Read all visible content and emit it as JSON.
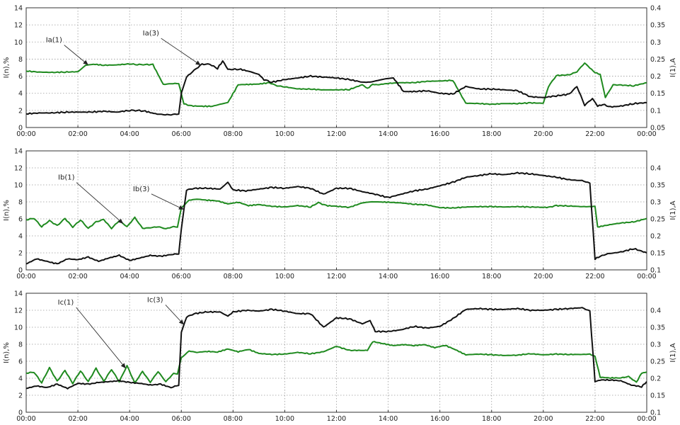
{
  "chart_data": [
    {
      "type": "line",
      "ylabel": "I(n),%",
      "ylabel_right": "I(1),A",
      "x_ticks": [
        "00:00",
        "02:00",
        "04:00",
        "06:00",
        "08:00",
        "10:00",
        "12:00",
        "14:00",
        "16:00",
        "18:00",
        "20:00",
        "22:00",
        "00:00"
      ],
      "ylim": [
        0,
        14
      ],
      "y_ticks": [
        "0",
        "2",
        "4",
        "6",
        "8",
        "10",
        "12",
        "14"
      ],
      "ylim_right": [
        0.05,
        0.4
      ],
      "y_ticks_right": [
        "0.05",
        "0.1",
        "0.15",
        "0.2",
        "0.25",
        "0.3",
        "0.35",
        "0.4"
      ],
      "grid": true,
      "series": [
        {
          "name": "Ia(1)",
          "axis": "right",
          "color": "#1f8a1f",
          "x": [
            0,
            0.5,
            1,
            1.5,
            2,
            2.3,
            2.6,
            3,
            3.5,
            4,
            4.3,
            4.6,
            4.9,
            5.3,
            5.6,
            5.9,
            6.1,
            6.4,
            6.8,
            7.2,
            7.5,
            7.8,
            8.2,
            8.6,
            9,
            9.4,
            9.7,
            10,
            10.5,
            11,
            11.5,
            12,
            12.5,
            13,
            13.2,
            13.4,
            13.6,
            14,
            14.5,
            15,
            15.5,
            16,
            16.5,
            17,
            17.5,
            18,
            18.5,
            19,
            19.5,
            20,
            20.2,
            20.5,
            21,
            21.3,
            21.6,
            21.8,
            22,
            22.2,
            22.4,
            22.7,
            23,
            23.5,
            24
          ],
          "y": [
            0.215,
            0.212,
            0.211,
            0.212,
            0.213,
            0.232,
            0.235,
            0.232,
            0.233,
            0.236,
            0.234,
            0.234,
            0.234,
            0.176,
            0.178,
            0.179,
            0.119,
            0.113,
            0.112,
            0.112,
            0.118,
            0.123,
            0.175,
            0.176,
            0.177,
            0.181,
            0.172,
            0.169,
            0.163,
            0.162,
            0.16,
            0.16,
            0.161,
            0.175,
            0.164,
            0.176,
            0.175,
            0.179,
            0.181,
            0.181,
            0.185,
            0.186,
            0.188,
            0.121,
            0.12,
            0.118,
            0.12,
            0.12,
            0.122,
            0.121,
            0.17,
            0.202,
            0.204,
            0.213,
            0.239,
            0.224,
            0.211,
            0.205,
            0.138,
            0.175,
            0.174,
            0.172,
            0.181
          ]
        },
        {
          "name": "Ia(3)",
          "axis": "left",
          "color": "#111111",
          "x": [
            0,
            0.5,
            1,
            1.5,
            2,
            2.5,
            3,
            3.5,
            4,
            4.3,
            4.6,
            5,
            5.3,
            5.6,
            5.9,
            6,
            6.2,
            6.5,
            6.8,
            7.1,
            7.4,
            7.6,
            7.8,
            8,
            8.3,
            8.7,
            9,
            9.2,
            9.5,
            10,
            10.5,
            11,
            11.5,
            12,
            12.5,
            13,
            13.3,
            13.6,
            13.9,
            14.2,
            14.6,
            15,
            15.5,
            16,
            16.5,
            17,
            17.5,
            18,
            18.5,
            19,
            19.5,
            20,
            20.5,
            21,
            21.3,
            21.6,
            21.9,
            22.1,
            22.3,
            22.6,
            23,
            23.5,
            24
          ],
          "y": [
            1.6,
            1.7,
            1.7,
            1.8,
            1.8,
            1.8,
            1.9,
            1.8,
            2.0,
            2.0,
            1.9,
            1.6,
            1.5,
            1.5,
            1.6,
            4.0,
            5.9,
            6.7,
            7.4,
            7.4,
            6.9,
            7.8,
            6.8,
            6.8,
            6.8,
            6.5,
            6.2,
            5.6,
            5.3,
            5.6,
            5.8,
            6.0,
            5.9,
            5.8,
            5.6,
            5.3,
            5.3,
            5.5,
            5.7,
            5.8,
            4.2,
            4.2,
            4.3,
            4.0,
            3.9,
            4.8,
            4.5,
            4.5,
            4.4,
            4.3,
            3.6,
            3.5,
            3.7,
            3.9,
            4.8,
            2.6,
            3.4,
            2.5,
            2.7,
            2.4,
            2.5,
            2.8,
            2.9
          ]
        }
      ],
      "annotations": [
        {
          "text": "Ia(1)",
          "series": "Ia(1)",
          "x": 2.4
        },
        {
          "text": "Ia(3)",
          "series": "Ia(3)",
          "x": 6.75
        }
      ]
    },
    {
      "type": "line",
      "ylabel": "I(n),%",
      "ylabel_right": "I(1),A",
      "x_ticks": [
        "00:00",
        "02:00",
        "04:00",
        "06:00",
        "08:00",
        "10:00",
        "12:00",
        "14:00",
        "16:00",
        "18:00",
        "20:00",
        "22:00",
        "00:00"
      ],
      "ylim": [
        0,
        14
      ],
      "y_ticks": [
        "0",
        "2",
        "4",
        "6",
        "8",
        "10",
        "12",
        "14"
      ],
      "ylim_right": [
        0.1,
        0.45
      ],
      "y_ticks_right": [
        "0.1",
        "0.15",
        "0.2",
        "0.25",
        "0.3",
        "0.35",
        "0.4"
      ],
      "grid": true,
      "series": [
        {
          "name": "Ib(1)",
          "axis": "right",
          "color": "#1f8a1f",
          "x": [
            0,
            0.3,
            0.6,
            0.9,
            1.2,
            1.5,
            1.8,
            2.1,
            2.4,
            2.7,
            3,
            3.3,
            3.6,
            3.9,
            4.2,
            4.5,
            4.8,
            5.1,
            5.4,
            5.7,
            5.85,
            6,
            6.3,
            6.6,
            7,
            7.4,
            7.8,
            8.2,
            8.6,
            9,
            9.5,
            10,
            10.5,
            11,
            11.3,
            11.6,
            12,
            12.5,
            13,
            13.3,
            13.6,
            14,
            14.5,
            15,
            15.5,
            16,
            16.5,
            17,
            17.5,
            18,
            18.5,
            19,
            19.5,
            20,
            20.2,
            20.5,
            21,
            21.5,
            21.8,
            22,
            22.1,
            22.5,
            23,
            23.5,
            24
          ],
          "y": [
            0.247,
            0.252,
            0.227,
            0.245,
            0.23,
            0.251,
            0.226,
            0.247,
            0.222,
            0.241,
            0.248,
            0.222,
            0.245,
            0.227,
            0.254,
            0.222,
            0.224,
            0.227,
            0.221,
            0.227,
            0.226,
            0.282,
            0.305,
            0.308,
            0.305,
            0.303,
            0.294,
            0.299,
            0.289,
            0.292,
            0.287,
            0.285,
            0.289,
            0.285,
            0.298,
            0.289,
            0.287,
            0.284,
            0.297,
            0.3,
            0.3,
            0.299,
            0.297,
            0.293,
            0.291,
            0.283,
            0.282,
            0.285,
            0.286,
            0.286,
            0.285,
            0.286,
            0.285,
            0.284,
            0.284,
            0.289,
            0.288,
            0.286,
            0.286,
            0.286,
            0.226,
            0.232,
            0.238,
            0.241,
            0.251
          ]
        },
        {
          "name": "Ib(3)",
          "axis": "left",
          "color": "#111111",
          "x": [
            0,
            0.4,
            0.8,
            1.2,
            1.6,
            2,
            2.4,
            2.8,
            3.2,
            3.6,
            4,
            4.4,
            4.8,
            5.2,
            5.6,
            5.9,
            6,
            6.2,
            6.5,
            7,
            7.5,
            7.8,
            8,
            8.5,
            9,
            9.5,
            10,
            10.5,
            11,
            11.5,
            12,
            12.5,
            13,
            13.5,
            14,
            14.5,
            15,
            15.5,
            16,
            16.5,
            17,
            17.5,
            18,
            18.5,
            19,
            19.5,
            20,
            20.5,
            21,
            21.5,
            21.8,
            22,
            22.2,
            22.5,
            23,
            23.5,
            24
          ],
          "y": [
            0.7,
            1.3,
            1.0,
            0.7,
            1.3,
            1.2,
            1.5,
            1.0,
            1.4,
            1.7,
            1.1,
            1.4,
            1.7,
            1.6,
            1.8,
            1.9,
            4.8,
            9.4,
            9.6,
            9.6,
            9.5,
            10.3,
            9.4,
            9.3,
            9.5,
            9.7,
            9.6,
            9.8,
            9.6,
            8.9,
            9.6,
            9.6,
            9.2,
            8.9,
            8.5,
            8.9,
            9.3,
            9.5,
            9.9,
            10.3,
            10.9,
            11.1,
            11.3,
            11.2,
            11.4,
            11.3,
            11.1,
            10.9,
            10.6,
            10.5,
            10.2,
            1.3,
            1.6,
            1.9,
            2.1,
            2.5,
            2.0
          ]
        }
      ],
      "annotations": [
        {
          "text": "Ib(1)",
          "series": "Ib(1)",
          "x": 3.75
        },
        {
          "text": "Ib(3)",
          "series": "Ib(3)",
          "x": 6.1
        }
      ]
    },
    {
      "type": "line",
      "ylabel": "I(n),%",
      "ylabel_right": "I(1),A",
      "x_ticks": [
        "00:00",
        "02:00",
        "04:00",
        "06:00",
        "08:00",
        "10:00",
        "12:00",
        "14:00",
        "16:00",
        "18:00",
        "20:00",
        "22:00",
        "00:00"
      ],
      "ylim": [
        0,
        14
      ],
      "y_ticks": [
        "0",
        "2",
        "4",
        "6",
        "8",
        "10",
        "12",
        "14"
      ],
      "ylim_right": [
        0.1,
        0.45
      ],
      "y_ticks_right": [
        "0.1",
        "0.15",
        "0.2",
        "0.25",
        "0.3",
        "0.35",
        "0.4"
      ],
      "grid": true,
      "series": [
        {
          "name": "Ic(1)",
          "axis": "right",
          "color": "#1f8a1f",
          "x": [
            0,
            0.3,
            0.6,
            0.9,
            1.2,
            1.5,
            1.8,
            2.1,
            2.4,
            2.7,
            3,
            3.3,
            3.6,
            3.9,
            4.2,
            4.5,
            4.8,
            5.1,
            5.4,
            5.7,
            5.85,
            6,
            6.3,
            6.6,
            7,
            7.4,
            7.8,
            8.2,
            8.6,
            9,
            9.5,
            10,
            10.5,
            11,
            11.5,
            12,
            12.5,
            13,
            13.2,
            13.4,
            13.8,
            14.2,
            14.6,
            15,
            15.4,
            15.8,
            16.2,
            16.6,
            17,
            17.5,
            18,
            18.5,
            19,
            19.5,
            20,
            20.5,
            21,
            21.5,
            21.8,
            22,
            22.2,
            22.6,
            23,
            23.3,
            23.6,
            23.8,
            24
          ],
          "y": [
            0.215,
            0.218,
            0.187,
            0.231,
            0.191,
            0.223,
            0.185,
            0.222,
            0.19,
            0.229,
            0.191,
            0.226,
            0.19,
            0.237,
            0.186,
            0.22,
            0.188,
            0.22,
            0.19,
            0.214,
            0.213,
            0.26,
            0.28,
            0.276,
            0.279,
            0.277,
            0.286,
            0.278,
            0.285,
            0.273,
            0.27,
            0.271,
            0.276,
            0.272,
            0.278,
            0.294,
            0.282,
            0.282,
            0.282,
            0.308,
            0.302,
            0.296,
            0.299,
            0.296,
            0.299,
            0.29,
            0.297,
            0.284,
            0.269,
            0.271,
            0.269,
            0.267,
            0.268,
            0.272,
            0.269,
            0.271,
            0.27,
            0.27,
            0.271,
            0.264,
            0.203,
            0.201,
            0.201,
            0.205,
            0.188,
            0.215,
            0.218
          ]
        },
        {
          "name": "Ic(3)",
          "axis": "left",
          "color": "#111111",
          "x": [
            0,
            0.4,
            0.8,
            1.2,
            1.6,
            2,
            2.4,
            2.8,
            3.2,
            3.6,
            4,
            4.4,
            4.8,
            5.2,
            5.6,
            5.9,
            6,
            6.2,
            6.5,
            7,
            7.5,
            7.8,
            8,
            8.5,
            9,
            9.5,
            10,
            10.5,
            11,
            11.5,
            12,
            12.5,
            13,
            13.3,
            13.5,
            14,
            14.5,
            15,
            15.5,
            16,
            16.5,
            17,
            17.5,
            18,
            18.5,
            19,
            19.5,
            20,
            20.5,
            21,
            21.5,
            21.8,
            22,
            22.2,
            22.6,
            23,
            23.4,
            23.8,
            24
          ],
          "y": [
            2.8,
            3.1,
            2.9,
            3.3,
            2.8,
            3.4,
            3.3,
            3.5,
            3.6,
            3.7,
            3.5,
            3.4,
            3.2,
            3.3,
            2.9,
            3.2,
            9.4,
            11.2,
            11.6,
            11.8,
            11.8,
            11.3,
            11.8,
            12.0,
            11.9,
            12.1,
            11.9,
            11.6,
            11.6,
            10.0,
            11.1,
            11.0,
            10.4,
            10.8,
            9.5,
            9.5,
            9.7,
            10.1,
            9.9,
            10.1,
            11.0,
            12.1,
            12.2,
            12.1,
            12.1,
            12.2,
            12.0,
            12.0,
            12.1,
            12.2,
            12.3,
            11.9,
            3.6,
            3.8,
            3.8,
            3.7,
            3.2,
            3.0,
            3.6
          ]
        }
      ],
      "annotations": [
        {
          "text": "Ic(1)",
          "series": "Ic(1)",
          "x": 3.85
        },
        {
          "text": "Ic(3)",
          "series": "Ic(3)",
          "x": 6.1
        }
      ]
    }
  ]
}
